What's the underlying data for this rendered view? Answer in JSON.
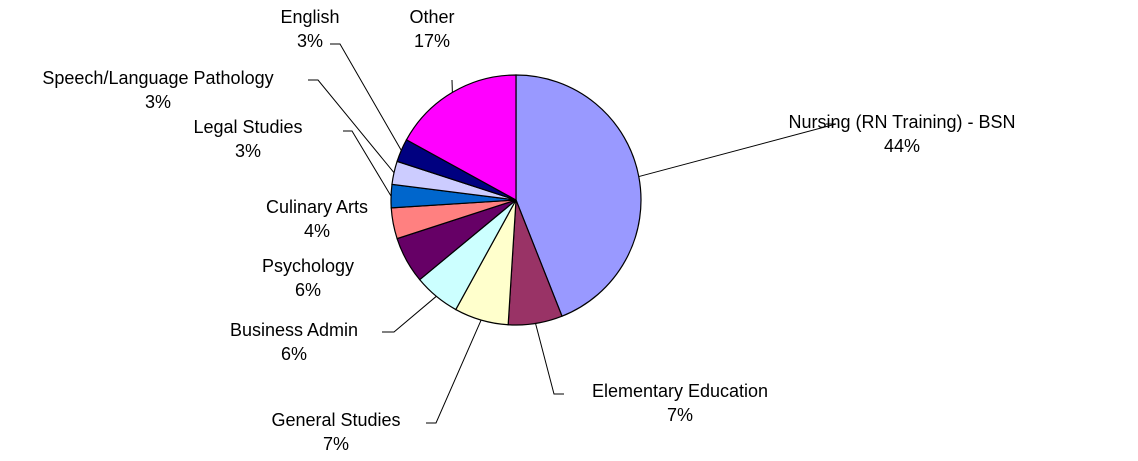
{
  "chart_data": {
    "type": "pie",
    "start_angle_deg": 0,
    "direction": "clockwise",
    "slices": [
      {
        "label": "Nursing (RN Training) - BSN",
        "pct_label": "44%",
        "value": 44,
        "color": "#9999FF"
      },
      {
        "label": "Elementary Education",
        "pct_label": "7%",
        "value": 7,
        "color": "#993366"
      },
      {
        "label": "General Studies",
        "pct_label": "7%",
        "value": 7,
        "color": "#FFFFCC"
      },
      {
        "label": "Business Admin",
        "pct_label": "6%",
        "value": 6,
        "color": "#CCFFFF"
      },
      {
        "label": "Psychology",
        "pct_label": "6%",
        "value": 6,
        "color": "#660066"
      },
      {
        "label": "Culinary Arts",
        "pct_label": "4%",
        "value": 4,
        "color": "#FF8080"
      },
      {
        "label": "Legal Studies",
        "pct_label": "3%",
        "value": 3,
        "color": "#0066CC"
      },
      {
        "label": "Speech/Language Pathology",
        "pct_label": "3%",
        "value": 3,
        "color": "#CCCCFF"
      },
      {
        "label": "English",
        "pct_label": "3%",
        "value": 3,
        "color": "#000080"
      },
      {
        "label": "Other",
        "pct_label": "17%",
        "value": 17,
        "color": "#FF00FF"
      }
    ]
  }
}
